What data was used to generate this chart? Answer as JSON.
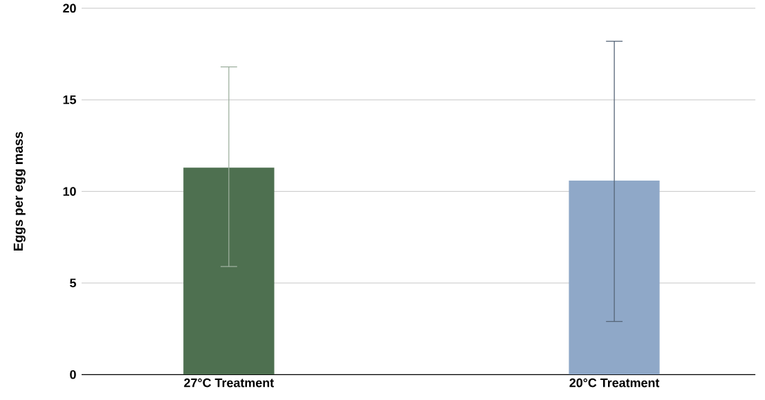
{
  "chart_data": {
    "type": "bar",
    "ylabel": "Eggs per egg mass",
    "categories": [
      "27°C Treatment",
      "20°C Treatment"
    ],
    "values": [
      11.3,
      10.6
    ],
    "errors": [
      [
        5.9,
        16.8
      ],
      [
        2.9,
        18.2
      ]
    ],
    "colors": [
      "#4e7050",
      "#8fa8c8"
    ],
    "ylim": [
      0,
      20
    ],
    "yticks": [
      0,
      5,
      10,
      15,
      20
    ],
    "grid": "y"
  }
}
